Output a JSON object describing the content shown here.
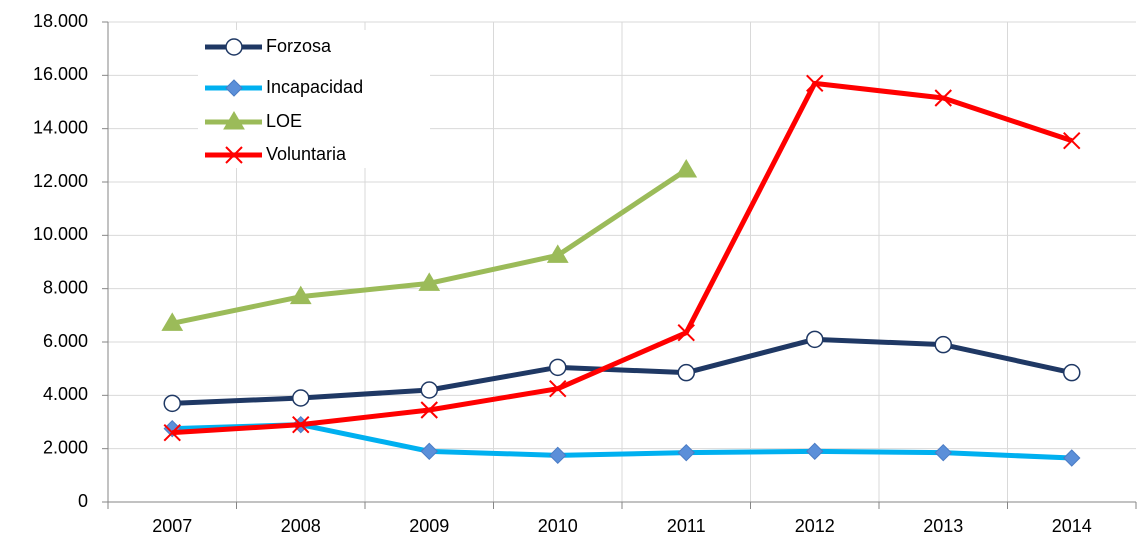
{
  "chart_data": {
    "type": "line",
    "categories": [
      "2007",
      "2008",
      "2009",
      "2010",
      "2011",
      "2012",
      "2013",
      "2014"
    ],
    "series": [
      {
        "name": "Forzosa",
        "color": "#1f3864",
        "marker": "circle",
        "values": [
          3700,
          3900,
          4200,
          5050,
          4850,
          6100,
          5900,
          4850
        ]
      },
      {
        "name": "Incapacidad",
        "color": "#00b0f0",
        "marker": "diamond",
        "values": [
          2750,
          2900,
          1900,
          1750,
          1850,
          1900,
          1850,
          1650
        ]
      },
      {
        "name": "LOE",
        "color": "#9bbb59",
        "marker": "triangle",
        "values": [
          6700,
          7700,
          8200,
          9250,
          12450,
          null,
          null,
          null
        ]
      },
      {
        "name": "Voluntaria",
        "color": "#ff0000",
        "marker": "x",
        "values": [
          2600,
          2900,
          3450,
          4250,
          6350,
          15700,
          15150,
          13550
        ]
      }
    ],
    "ylim": [
      0,
      18000
    ],
    "yticks": [
      0,
      {
        "value": 2000,
        "label": "2.000"
      },
      {
        "value": 4000,
        "label": "4.000"
      },
      {
        "value": 6000,
        "label": "6.000"
      },
      {
        "value": 8000,
        "label": "8.000"
      },
      {
        "value": 10000,
        "label": "10.000"
      },
      {
        "value": 12000,
        "label": "12.000"
      },
      {
        "value": 14000,
        "label": "14.000"
      },
      {
        "value": 16000,
        "label": "16.000"
      },
      {
        "value": 18000,
        "label": "18.000"
      }
    ],
    "grid": true,
    "legend": "upper-left"
  }
}
